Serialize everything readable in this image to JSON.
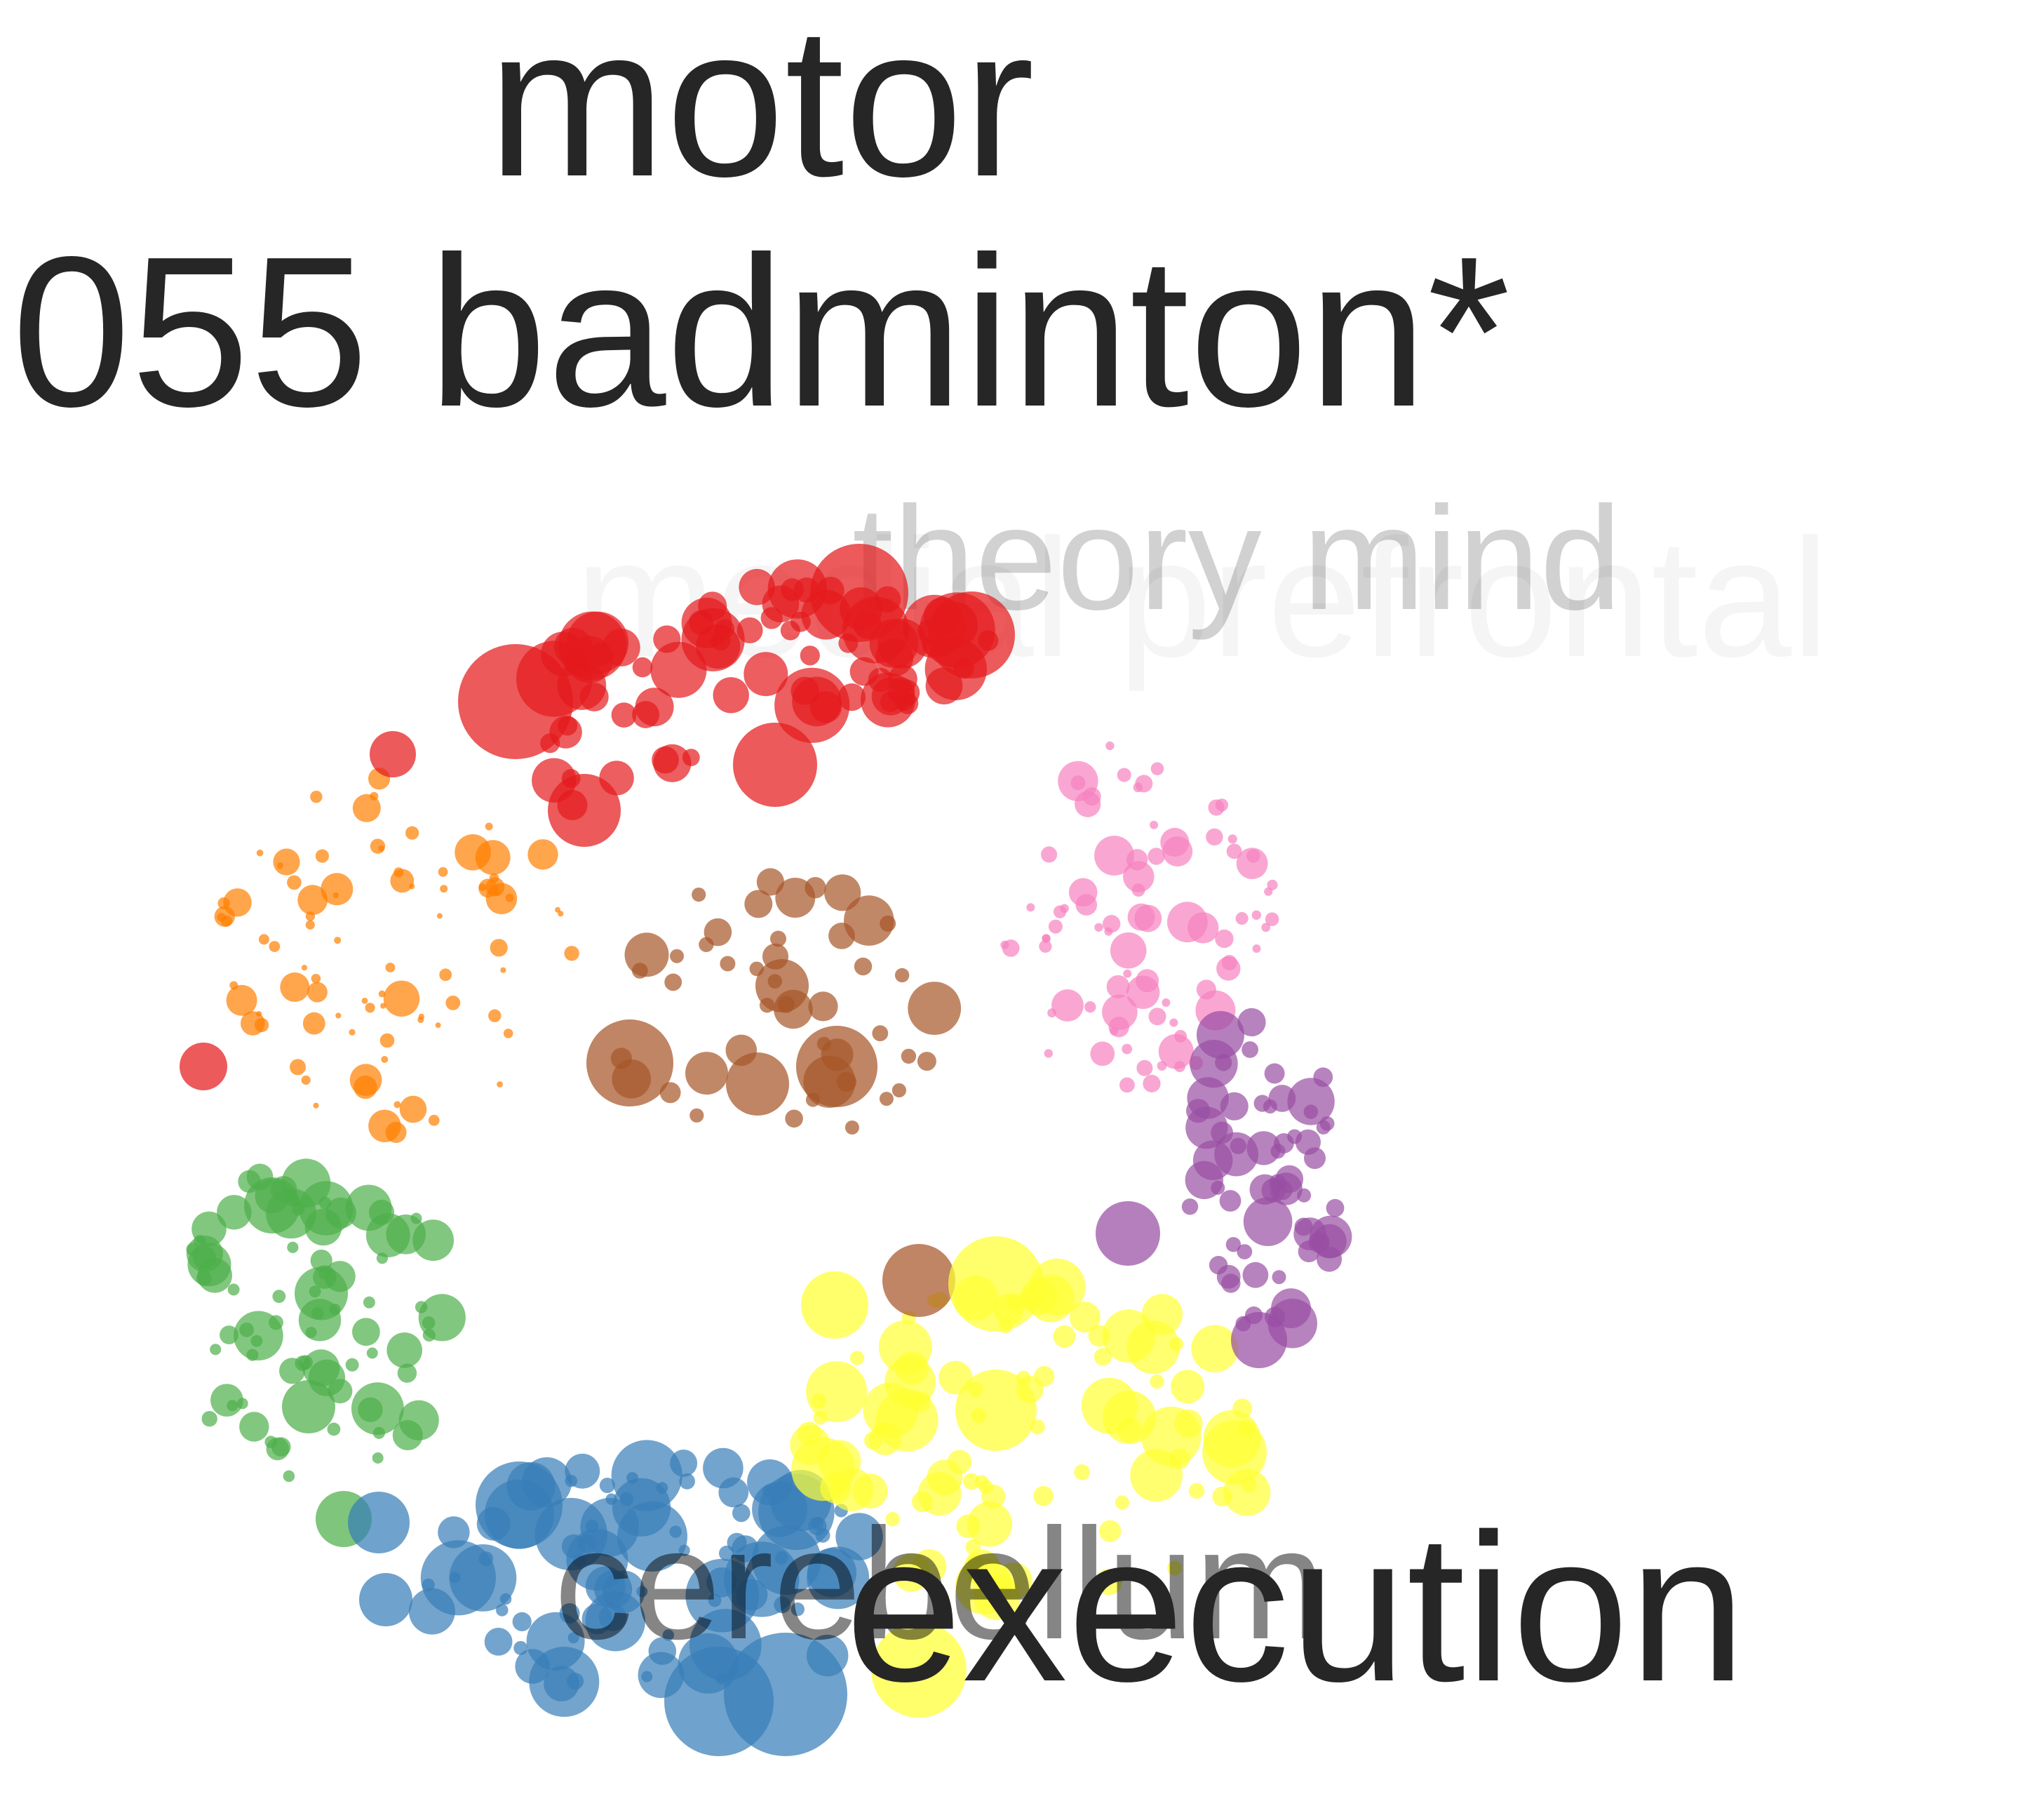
{
  "title_lines": [
    "motor",
    "055 badminton*"
  ],
  "labels": {
    "theory_mind": "theory mind",
    "medial_prefrontal": "medial prefrontal",
    "cerebellum": "cerebellum",
    "execution": "execution"
  },
  "clusters": [
    {
      "name": "red",
      "color": "#e41a1c"
    },
    {
      "name": "orange",
      "color": "#ff7f00"
    },
    {
      "name": "pink",
      "color": "#f781bf"
    },
    {
      "name": "brown",
      "color": "#a65628"
    },
    {
      "name": "purple",
      "color": "#984ea3"
    },
    {
      "name": "green",
      "color": "#4daf4a"
    },
    {
      "name": "blue",
      "color": "#377eb8"
    },
    {
      "name": "yellow",
      "color": "#ffff33"
    }
  ]
}
